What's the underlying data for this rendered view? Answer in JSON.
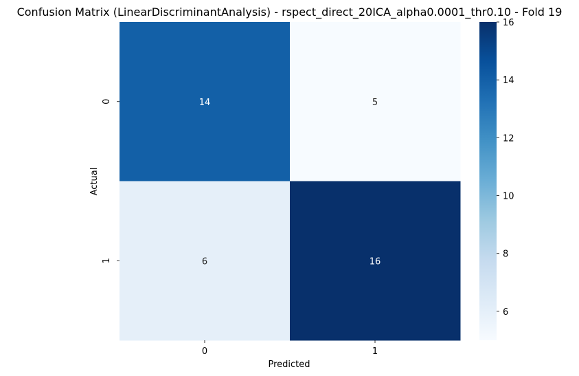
{
  "chart_data": {
    "type": "heatmap",
    "title": "Confusion Matrix (LinearDiscriminantAnalysis) - rspect_direct_20ICA_alpha0.0001_thr0.10 - Fold 19",
    "xlabel": "Predicted",
    "ylabel": "Actual",
    "x_categories": [
      "0",
      "1"
    ],
    "y_categories": [
      "0",
      "1"
    ],
    "values": [
      [
        14,
        5
      ],
      [
        6,
        16
      ]
    ],
    "colormap": "Blues",
    "color_range": [
      5,
      16
    ],
    "colorbar_ticks": [
      "6",
      "8",
      "10",
      "12",
      "14",
      "16"
    ],
    "annotations": true,
    "grid": false
  }
}
